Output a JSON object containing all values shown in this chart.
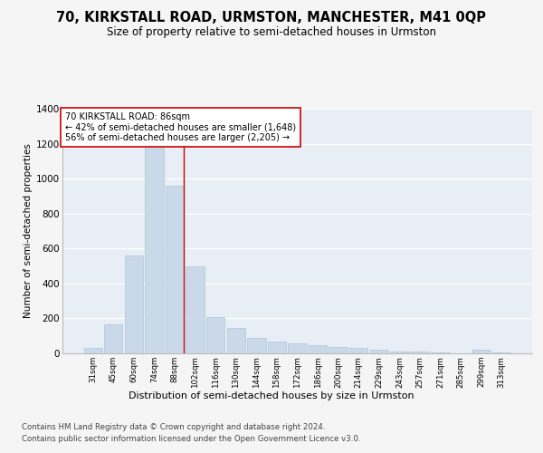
{
  "title": "70, KIRKSTALL ROAD, URMSTON, MANCHESTER, M41 0QP",
  "subtitle": "Size of property relative to semi-detached houses in Urmston",
  "xlabel": "Distribution of semi-detached houses by size in Urmston",
  "ylabel": "Number of semi-detached properties",
  "footer1": "Contains HM Land Registry data © Crown copyright and database right 2024.",
  "footer2": "Contains public sector information licensed under the Open Government Licence v3.0.",
  "categories": [
    "31sqm",
    "45sqm",
    "60sqm",
    "74sqm",
    "88sqm",
    "102sqm",
    "116sqm",
    "130sqm",
    "144sqm",
    "158sqm",
    "172sqm",
    "186sqm",
    "200sqm",
    "214sqm",
    "229sqm",
    "243sqm",
    "257sqm",
    "271sqm",
    "285sqm",
    "299sqm",
    "313sqm"
  ],
  "values": [
    30,
    165,
    560,
    1240,
    960,
    500,
    205,
    145,
    90,
    70,
    55,
    45,
    35,
    30,
    20,
    10,
    10,
    5,
    0,
    20,
    5
  ],
  "bar_color": "#c9d9ea",
  "bar_edge_color": "#b0c4d8",
  "highlight_index": 4,
  "highlight_color": "#cc0000",
  "ylim": [
    0,
    1400
  ],
  "yticks": [
    0,
    200,
    400,
    600,
    800,
    1000,
    1200,
    1400
  ],
  "annotation_title": "70 KIRKSTALL ROAD: 86sqm",
  "annotation_line1": "← 42% of semi-detached houses are smaller (1,648)",
  "annotation_line2": "56% of semi-detached houses are larger (2,205) →",
  "annotation_box_color": "#ffffff",
  "annotation_box_edge": "#cc0000",
  "bg_color": "#e8eef5",
  "grid_color": "#ffffff",
  "title_fontsize": 10.5,
  "subtitle_fontsize": 8.5
}
